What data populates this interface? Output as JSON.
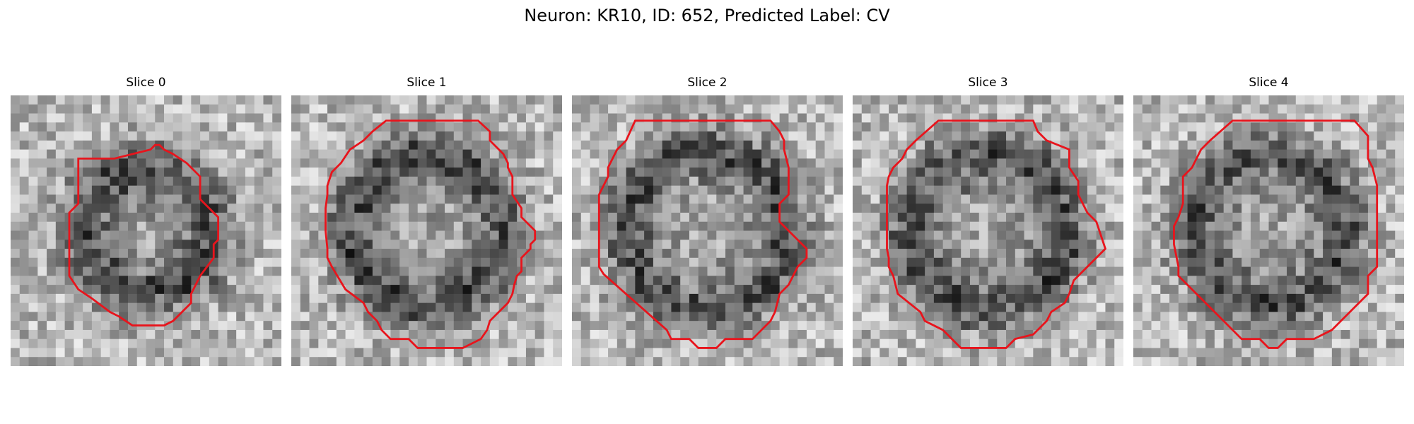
{
  "figure": {
    "title": "Neuron: KR10, ID: 652, Predicted Label: CV"
  },
  "contour_color": "#e8141c",
  "panels": [
    {
      "title": "Slice 0",
      "seed": 11,
      "ring_outer": 0.58,
      "ring_inner": 0.3
    },
    {
      "title": "Slice 1",
      "seed": 23,
      "ring_outer": 0.66,
      "ring_inner": 0.42
    },
    {
      "title": "Slice 2",
      "seed": 37,
      "ring_outer": 0.7,
      "ring_inner": 0.46
    },
    {
      "title": "Slice 3",
      "seed": 49,
      "ring_outer": 0.68,
      "ring_inner": 0.44
    },
    {
      "title": "Slice 4",
      "seed": 61,
      "ring_outer": 0.66,
      "ring_inner": 0.44
    }
  ]
}
